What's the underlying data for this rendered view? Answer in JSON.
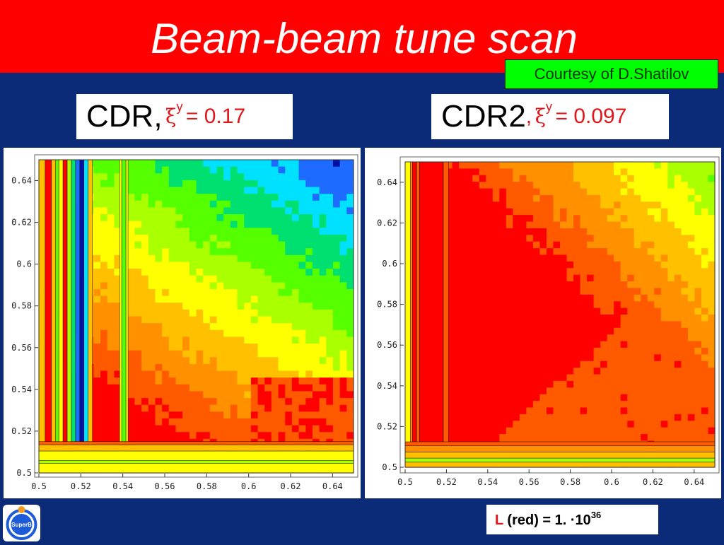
{
  "slide": {
    "title": "Beam-beam tune scan",
    "courtesy": "Courtesy of D.Shatilov",
    "logo_text": "SuperB",
    "colors": {
      "header": "#ff0000",
      "background": "#0b2a78",
      "courtesy_bg": "#00ff00",
      "accent_red": "#e0161a"
    }
  },
  "labels": {
    "left": {
      "name": "CDR,",
      "symbol": "ξ",
      "subscript": "y",
      "value_text": "= 0.17"
    },
    "right": {
      "name": "CDR2",
      "symbol": "ξ",
      "subscript": "y",
      "value_text": "= 0.097",
      "sep": ","
    }
  },
  "luminosity": {
    "symbol": "L",
    "text": "(red) = 1. ·10",
    "exponent": "36"
  },
  "chart_data": [
    {
      "type": "heatmap",
      "title": "CDR, ξy = 0.17",
      "x_range": [
        0.5,
        0.65
      ],
      "y_range": [
        0.5,
        0.65
      ],
      "x_ticks": [
        "0.5",
        "0.52",
        "0.54",
        "0.56",
        "0.58",
        "0.6",
        "0.62",
        "0.64"
      ],
      "y_ticks": [
        "0.5",
        "0.52",
        "0.54",
        "0.56",
        "0.58",
        "0.6",
        "0.62",
        "0.64"
      ],
      "x_tick_values": [
        0.5,
        0.52,
        0.54,
        0.56,
        0.58,
        0.6,
        0.62,
        0.64
      ],
      "y_tick_values": [
        0.5,
        0.52,
        0.54,
        0.56,
        0.58,
        0.6,
        0.62,
        0.64
      ],
      "color_levels": [
        "#0010a0",
        "#1e6cff",
        "#00e0ff",
        "#00e070",
        "#55ff00",
        "#aaff00",
        "#ffff00",
        "#ffc000",
        "#ff9000",
        "#ff5a00",
        "#ff0000"
      ],
      "vertical_bands": [
        {
          "x_start": 0.5,
          "x_end": 0.503,
          "level": 7
        },
        {
          "x_start": 0.503,
          "x_end": 0.506,
          "level": 10
        },
        {
          "x_start": 0.506,
          "x_end": 0.508,
          "level": 7
        },
        {
          "x_start": 0.508,
          "x_end": 0.5095,
          "level": 4
        },
        {
          "x_start": 0.5095,
          "x_end": 0.5115,
          "level": 6
        },
        {
          "x_start": 0.5115,
          "x_end": 0.5135,
          "level": 10
        },
        {
          "x_start": 0.5135,
          "x_end": 0.5155,
          "level": 5
        },
        {
          "x_start": 0.5155,
          "x_end": 0.5175,
          "level": 3
        },
        {
          "x_start": 0.5175,
          "x_end": 0.5195,
          "level": 1
        },
        {
          "x_start": 0.5195,
          "x_end": 0.5215,
          "level": 0
        },
        {
          "x_start": 0.5215,
          "x_end": 0.5235,
          "level": 2
        },
        {
          "x_start": 0.5235,
          "x_end": 0.5255,
          "level": 7
        },
        {
          "x_start": 0.5385,
          "x_end": 0.5395,
          "level": 6
        },
        {
          "x_start": 0.5395,
          "x_end": 0.5415,
          "level": 4
        },
        {
          "x_start": 0.5415,
          "x_end": 0.5425,
          "level": 6
        }
      ],
      "horizontal_bands": [
        {
          "y_start": 0.5,
          "y_end": 0.5045,
          "level": 6
        },
        {
          "y_start": 0.5045,
          "y_end": 0.506,
          "level": 5
        },
        {
          "y_start": 0.506,
          "y_end": 0.5105,
          "level": 6
        },
        {
          "y_start": 0.5105,
          "y_end": 0.5135,
          "level": 7
        },
        {
          "y_start": 0.5135,
          "y_end": 0.515,
          "level": 9
        }
      ]
    },
    {
      "type": "heatmap",
      "title": "CDR2, ξy = 0.097",
      "x_range": [
        0.5,
        0.65
      ],
      "y_range": [
        0.5,
        0.65
      ],
      "x_ticks": [
        "0.5",
        "0.52",
        "0.54",
        "0.56",
        "0.58",
        "0.6",
        "0.62",
        "0.64"
      ],
      "y_ticks": [
        "0.5",
        "0.52",
        "0.54",
        "0.56",
        "0.58",
        "0.6",
        "0.62",
        "0.64"
      ],
      "x_tick_values": [
        0.5,
        0.52,
        0.54,
        0.56,
        0.58,
        0.6,
        0.62,
        0.64
      ],
      "y_tick_values": [
        0.5,
        0.52,
        0.54,
        0.56,
        0.58,
        0.6,
        0.62,
        0.64
      ],
      "color_levels": [
        "#0010a0",
        "#1e6cff",
        "#00e0ff",
        "#00e070",
        "#55ff00",
        "#aaff00",
        "#ffff00",
        "#ffc000",
        "#ff9000",
        "#ff5a00",
        "#ff0000"
      ],
      "vertical_bands": [
        {
          "x_start": 0.5,
          "x_end": 0.5025,
          "level": 6
        },
        {
          "x_start": 0.5025,
          "x_end": 0.5035,
          "level": 8
        },
        {
          "x_start": 0.5035,
          "x_end": 0.5055,
          "level": 10
        },
        {
          "x_start": 0.5055,
          "x_end": 0.507,
          "level": 9
        },
        {
          "x_start": 0.507,
          "x_end": 0.5185,
          "level": 10
        },
        {
          "x_start": 0.5185,
          "x_end": 0.521,
          "level": 9
        }
      ],
      "horizontal_bands": [
        {
          "y_start": 0.5,
          "y_end": 0.5025,
          "level": 7
        },
        {
          "y_start": 0.5025,
          "y_end": 0.5045,
          "level": 5
        },
        {
          "y_start": 0.5045,
          "y_end": 0.5075,
          "level": 7
        },
        {
          "y_start": 0.5075,
          "y_end": 0.5105,
          "level": 8
        },
        {
          "y_start": 0.5105,
          "y_end": 0.5125,
          "level": 9
        }
      ]
    }
  ]
}
